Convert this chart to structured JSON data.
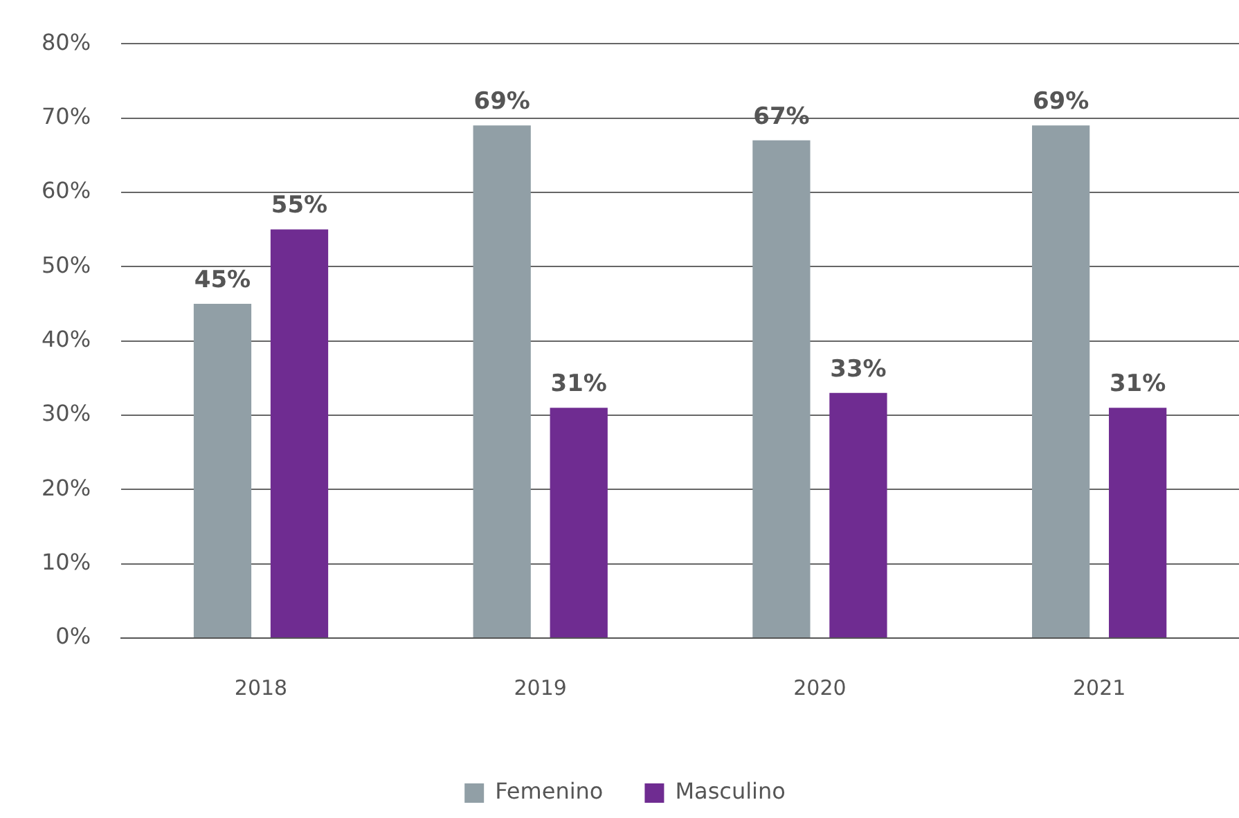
{
  "chart_data": {
    "type": "bar",
    "categories": [
      "2018",
      "2019",
      "2020",
      "2021"
    ],
    "series": [
      {
        "name": "Femenino",
        "color": "#919fa6",
        "values": [
          45,
          69,
          67,
          69
        ]
      },
      {
        "name": "Masculino",
        "color": "#6f2c91",
        "values": [
          55,
          31,
          33,
          31
        ]
      }
    ],
    "ylim": [
      0,
      80
    ],
    "yticks": [
      {
        "value": 0,
        "label": "0%"
      },
      {
        "value": 10,
        "label": "10%"
      },
      {
        "value": 20,
        "label": "20%"
      },
      {
        "value": 30,
        "label": "30%"
      },
      {
        "value": 40,
        "label": "40%"
      },
      {
        "value": 50,
        "label": "50%"
      },
      {
        "value": 60,
        "label": "60%"
      },
      {
        "value": 70,
        "label": "70%"
      },
      {
        "value": 80,
        "label": "80%"
      }
    ],
    "value_labels": [
      [
        "45%",
        "69%",
        "67%",
        "69%"
      ],
      [
        "55%",
        "31%",
        "33%",
        "31%"
      ]
    ],
    "grid": "y",
    "legend": "bottom"
  }
}
